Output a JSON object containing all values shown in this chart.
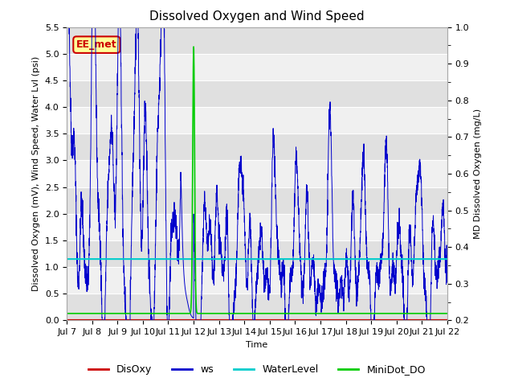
{
  "title": "Dissolved Oxygen and Wind Speed",
  "ylabel_left": "Dissolved Oxygen (mV), Wind Speed, Water Lvl (psi)",
  "ylabel_right": "MD Dissolved Oxygen (mg/L)",
  "xlabel": "Time",
  "annotation": "EE_met",
  "ylim_left": [
    0.0,
    5.5
  ],
  "ylim_right": [
    0.2,
    1.0
  ],
  "yticks_left": [
    0.0,
    0.5,
    1.0,
    1.5,
    2.0,
    2.5,
    3.0,
    3.5,
    4.0,
    4.5,
    5.0,
    5.5
  ],
  "yticks_right": [
    0.2,
    0.3,
    0.4,
    0.5,
    0.6,
    0.7,
    0.8,
    0.9,
    1.0
  ],
  "xtick_labels": [
    "Jul 7",
    "Jul 8",
    "Jul 9",
    "Jul 10",
    "Jul 11",
    "Jul 12",
    "Jul 13",
    "Jul 14",
    "Jul 15",
    "Jul 16",
    "Jul 17",
    "Jul 18",
    "Jul 19",
    "Jul 20",
    "Jul 21",
    "Jul 22"
  ],
  "disoxy_color": "#cc0000",
  "ws_color": "#0000cc",
  "waterlevel_color": "#00cccc",
  "minidot_color": "#00cc00",
  "figure_bg": "#ffffff",
  "plot_bg_light": "#f0f0f0",
  "plot_bg_dark": "#e0e0e0",
  "grid_color": "#ffffff",
  "annotation_bg": "#ffff99",
  "annotation_border": "#cc0000",
  "title_fontsize": 11,
  "axis_fontsize": 8,
  "tick_fontsize": 8,
  "legend_fontsize": 9,
  "waterlevel_value": 1.15,
  "disoxy_value": 0.01,
  "minidot_base": 0.13,
  "seed": 42
}
